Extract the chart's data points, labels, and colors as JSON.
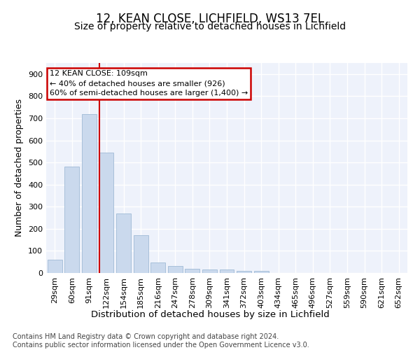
{
  "title1": "12, KEAN CLOSE, LICHFIELD, WS13 7EL",
  "title2": "Size of property relative to detached houses in Lichfield",
  "xlabel": "Distribution of detached houses by size in Lichfield",
  "ylabel": "Number of detached properties",
  "categories": [
    "29sqm",
    "60sqm",
    "91sqm",
    "122sqm",
    "154sqm",
    "185sqm",
    "216sqm",
    "247sqm",
    "278sqm",
    "309sqm",
    "341sqm",
    "372sqm",
    "403sqm",
    "434sqm",
    "465sqm",
    "496sqm",
    "527sqm",
    "559sqm",
    "590sqm",
    "621sqm",
    "652sqm"
  ],
  "values": [
    60,
    480,
    720,
    545,
    270,
    170,
    47,
    32,
    20,
    15,
    15,
    8,
    8,
    0,
    0,
    0,
    0,
    0,
    0,
    0,
    0
  ],
  "bar_color": "#cad9ed",
  "bar_edge_color": "#a8c0da",
  "vline_color": "#cc0000",
  "vline_x_index": 2.58,
  "annotation_line1": "12 KEAN CLOSE: 109sqm",
  "annotation_line2": "← 40% of detached houses are smaller (926)",
  "annotation_line3": "60% of semi-detached houses are larger (1,400) →",
  "annotation_box_color": "#cc0000",
  "ylim": [
    0,
    950
  ],
  "yticks": [
    0,
    100,
    200,
    300,
    400,
    500,
    600,
    700,
    800,
    900
  ],
  "background_color": "#eef2fb",
  "grid_color": "#ffffff",
  "footnote": "Contains HM Land Registry data © Crown copyright and database right 2024.\nContains public sector information licensed under the Open Government Licence v3.0.",
  "title1_fontsize": 12,
  "title2_fontsize": 10,
  "xlabel_fontsize": 9.5,
  "ylabel_fontsize": 9,
  "tick_fontsize": 8,
  "annotation_fontsize": 8,
  "footnote_fontsize": 7
}
